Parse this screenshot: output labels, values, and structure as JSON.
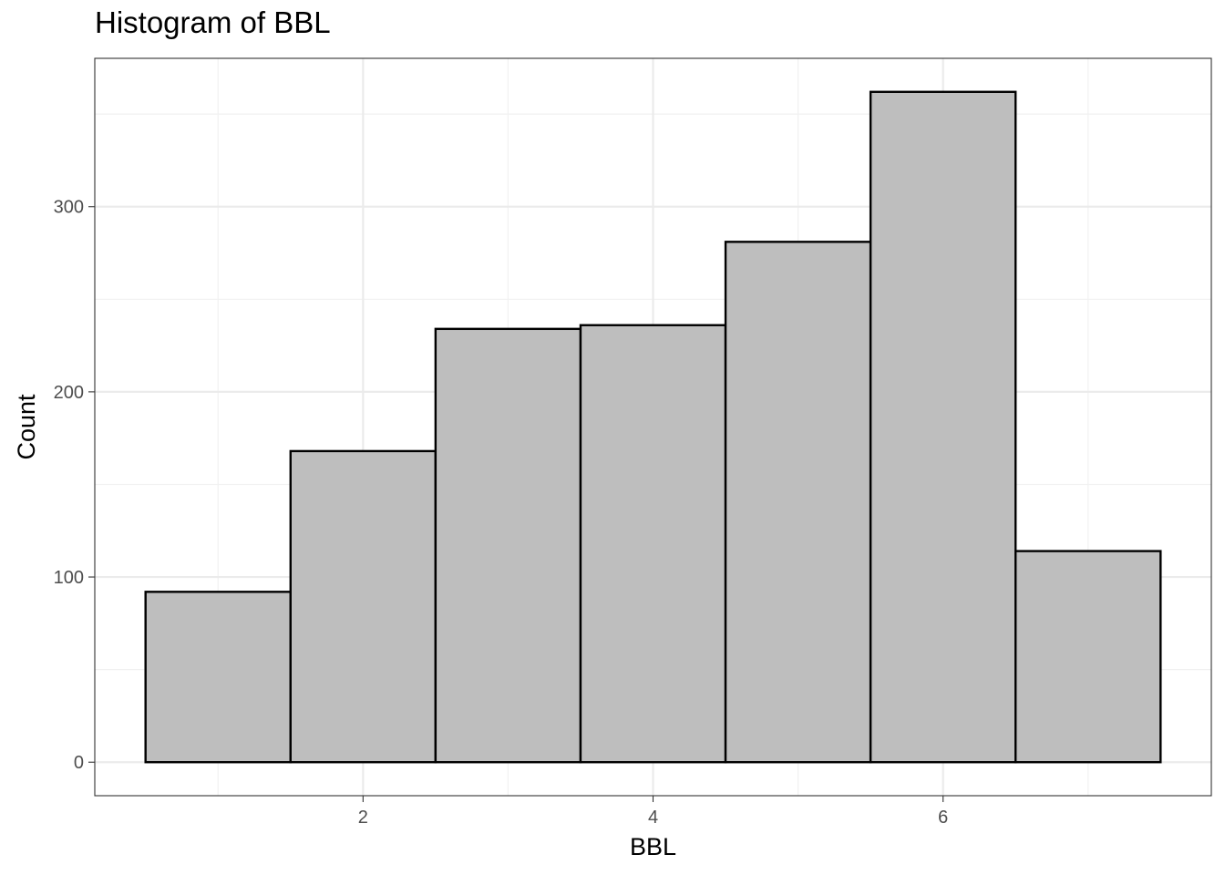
{
  "chart_data": {
    "type": "bar",
    "title": "Histogram of BBL",
    "xlabel": "BBL",
    "ylabel": "Count",
    "bins": [
      {
        "center": 1,
        "count": 92
      },
      {
        "center": 2,
        "count": 168
      },
      {
        "center": 3,
        "count": 234
      },
      {
        "center": 4,
        "count": 236
      },
      {
        "center": 5,
        "count": 281
      },
      {
        "center": 6,
        "count": 362
      },
      {
        "center": 7,
        "count": 114
      }
    ],
    "bin_width": 1,
    "xlim": [
      0.15,
      7.85
    ],
    "ylim": [
      -18.1,
      380.1
    ],
    "x_ticks": [
      2,
      4,
      6
    ],
    "y_ticks": [
      0,
      100,
      200,
      300
    ],
    "bar_fill": "#bebebe",
    "bar_stroke": "#000000",
    "grid": true,
    "legend": "none"
  }
}
